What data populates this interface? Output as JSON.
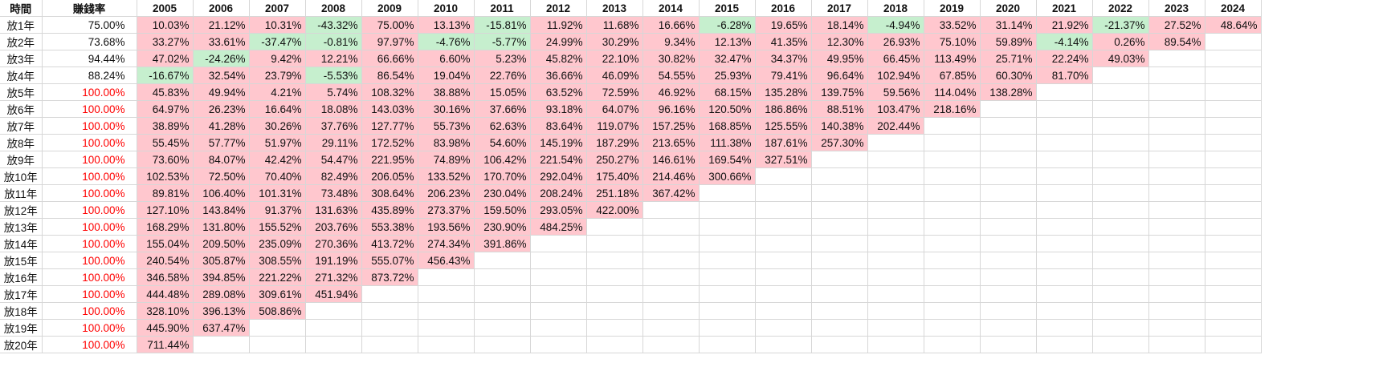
{
  "headers": {
    "time": "時間",
    "rate": "賺錢率",
    "years": [
      "2005",
      "2006",
      "2007",
      "2008",
      "2009",
      "2010",
      "2011",
      "2012",
      "2013",
      "2014",
      "2015",
      "2016",
      "2017",
      "2018",
      "2019",
      "2020",
      "2021",
      "2022",
      "2023",
      "2024"
    ]
  },
  "rows": [
    {
      "label": "放1年",
      "rate": "75.00%",
      "values": [
        "10.03%",
        "21.12%",
        "10.31%",
        "-43.32%",
        "75.00%",
        "13.13%",
        "-15.81%",
        "11.92%",
        "11.68%",
        "16.66%",
        "-6.28%",
        "19.65%",
        "18.14%",
        "-4.94%",
        "33.52%",
        "31.14%",
        "21.92%",
        "-21.37%",
        "27.52%",
        "48.64%"
      ]
    },
    {
      "label": "放2年",
      "rate": "73.68%",
      "values": [
        "33.27%",
        "33.61%",
        "-37.47%",
        "-0.81%",
        "97.97%",
        "-4.76%",
        "-5.77%",
        "24.99%",
        "30.29%",
        "9.34%",
        "12.13%",
        "41.35%",
        "12.30%",
        "26.93%",
        "75.10%",
        "59.89%",
        "-4.14%",
        "0.26%",
        "89.54%"
      ]
    },
    {
      "label": "放3年",
      "rate": "94.44%",
      "values": [
        "47.02%",
        "-24.26%",
        "9.42%",
        "12.21%",
        "66.66%",
        "6.60%",
        "5.23%",
        "45.82%",
        "22.10%",
        "30.82%",
        "32.47%",
        "34.37%",
        "49.95%",
        "66.45%",
        "113.49%",
        "25.71%",
        "22.24%",
        "49.03%"
      ]
    },
    {
      "label": "放4年",
      "rate": "88.24%",
      "values": [
        "-16.67%",
        "32.54%",
        "23.79%",
        "-5.53%",
        "86.54%",
        "19.04%",
        "22.76%",
        "36.66%",
        "46.09%",
        "54.55%",
        "25.93%",
        "79.41%",
        "96.64%",
        "102.94%",
        "67.85%",
        "60.30%",
        "81.70%"
      ]
    },
    {
      "label": "放5年",
      "rate": "100.00%",
      "values": [
        "45.83%",
        "49.94%",
        "4.21%",
        "5.74%",
        "108.32%",
        "38.88%",
        "15.05%",
        "63.52%",
        "72.59%",
        "46.92%",
        "68.15%",
        "135.28%",
        "139.75%",
        "59.56%",
        "114.04%",
        "138.28%"
      ]
    },
    {
      "label": "放6年",
      "rate": "100.00%",
      "values": [
        "64.97%",
        "26.23%",
        "16.64%",
        "18.08%",
        "143.03%",
        "30.16%",
        "37.66%",
        "93.18%",
        "64.07%",
        "96.16%",
        "120.50%",
        "186.86%",
        "88.51%",
        "103.47%",
        "218.16%"
      ]
    },
    {
      "label": "放7年",
      "rate": "100.00%",
      "values": [
        "38.89%",
        "41.28%",
        "30.26%",
        "37.76%",
        "127.77%",
        "55.73%",
        "62.63%",
        "83.64%",
        "119.07%",
        "157.25%",
        "168.85%",
        "125.55%",
        "140.38%",
        "202.44%"
      ]
    },
    {
      "label": "放8年",
      "rate": "100.00%",
      "values": [
        "55.45%",
        "57.77%",
        "51.97%",
        "29.11%",
        "172.52%",
        "83.98%",
        "54.60%",
        "145.19%",
        "187.29%",
        "213.65%",
        "111.38%",
        "187.61%",
        "257.30%"
      ]
    },
    {
      "label": "放9年",
      "rate": "100.00%",
      "values": [
        "73.60%",
        "84.07%",
        "42.42%",
        "54.47%",
        "221.95%",
        "74.89%",
        "106.42%",
        "221.54%",
        "250.27%",
        "146.61%",
        "169.54%",
        "327.51%"
      ]
    },
    {
      "label": "放10年",
      "rate": "100.00%",
      "values": [
        "102.53%",
        "72.50%",
        "70.40%",
        "82.49%",
        "206.05%",
        "133.52%",
        "170.70%",
        "292.04%",
        "175.40%",
        "214.46%",
        "300.66%"
      ]
    },
    {
      "label": "放11年",
      "rate": "100.00%",
      "values": [
        "89.81%",
        "106.40%",
        "101.31%",
        "73.48%",
        "308.64%",
        "206.23%",
        "230.04%",
        "208.24%",
        "251.18%",
        "367.42%"
      ]
    },
    {
      "label": "放12年",
      "rate": "100.00%",
      "values": [
        "127.10%",
        "143.84%",
        "91.37%",
        "131.63%",
        "435.89%",
        "273.37%",
        "159.50%",
        "293.05%",
        "422.00%"
      ]
    },
    {
      "label": "放13年",
      "rate": "100.00%",
      "values": [
        "168.29%",
        "131.80%",
        "155.52%",
        "203.76%",
        "553.38%",
        "193.56%",
        "230.90%",
        "484.25%"
      ]
    },
    {
      "label": "放14年",
      "rate": "100.00%",
      "values": [
        "155.04%",
        "209.50%",
        "235.09%",
        "270.36%",
        "413.72%",
        "274.34%",
        "391.86%"
      ]
    },
    {
      "label": "放15年",
      "rate": "100.00%",
      "values": [
        "240.54%",
        "305.87%",
        "308.55%",
        "191.19%",
        "555.07%",
        "456.43%"
      ]
    },
    {
      "label": "放16年",
      "rate": "100.00%",
      "values": [
        "346.58%",
        "394.85%",
        "221.22%",
        "271.32%",
        "873.72%"
      ]
    },
    {
      "label": "放17年",
      "rate": "100.00%",
      "values": [
        "444.48%",
        "289.08%",
        "309.61%",
        "451.94%"
      ]
    },
    {
      "label": "放18年",
      "rate": "100.00%",
      "values": [
        "328.10%",
        "396.13%",
        "508.86%"
      ]
    },
    {
      "label": "放19年",
      "rate": "100.00%",
      "values": [
        "445.90%",
        "637.47%"
      ]
    },
    {
      "label": "放20年",
      "rate": "100.00%",
      "values": [
        "711.44%"
      ]
    }
  ],
  "colors": {
    "positive_fill": "#ffc7ce",
    "negative_fill": "#c6efce",
    "full_rate_text": "#ff0000"
  }
}
